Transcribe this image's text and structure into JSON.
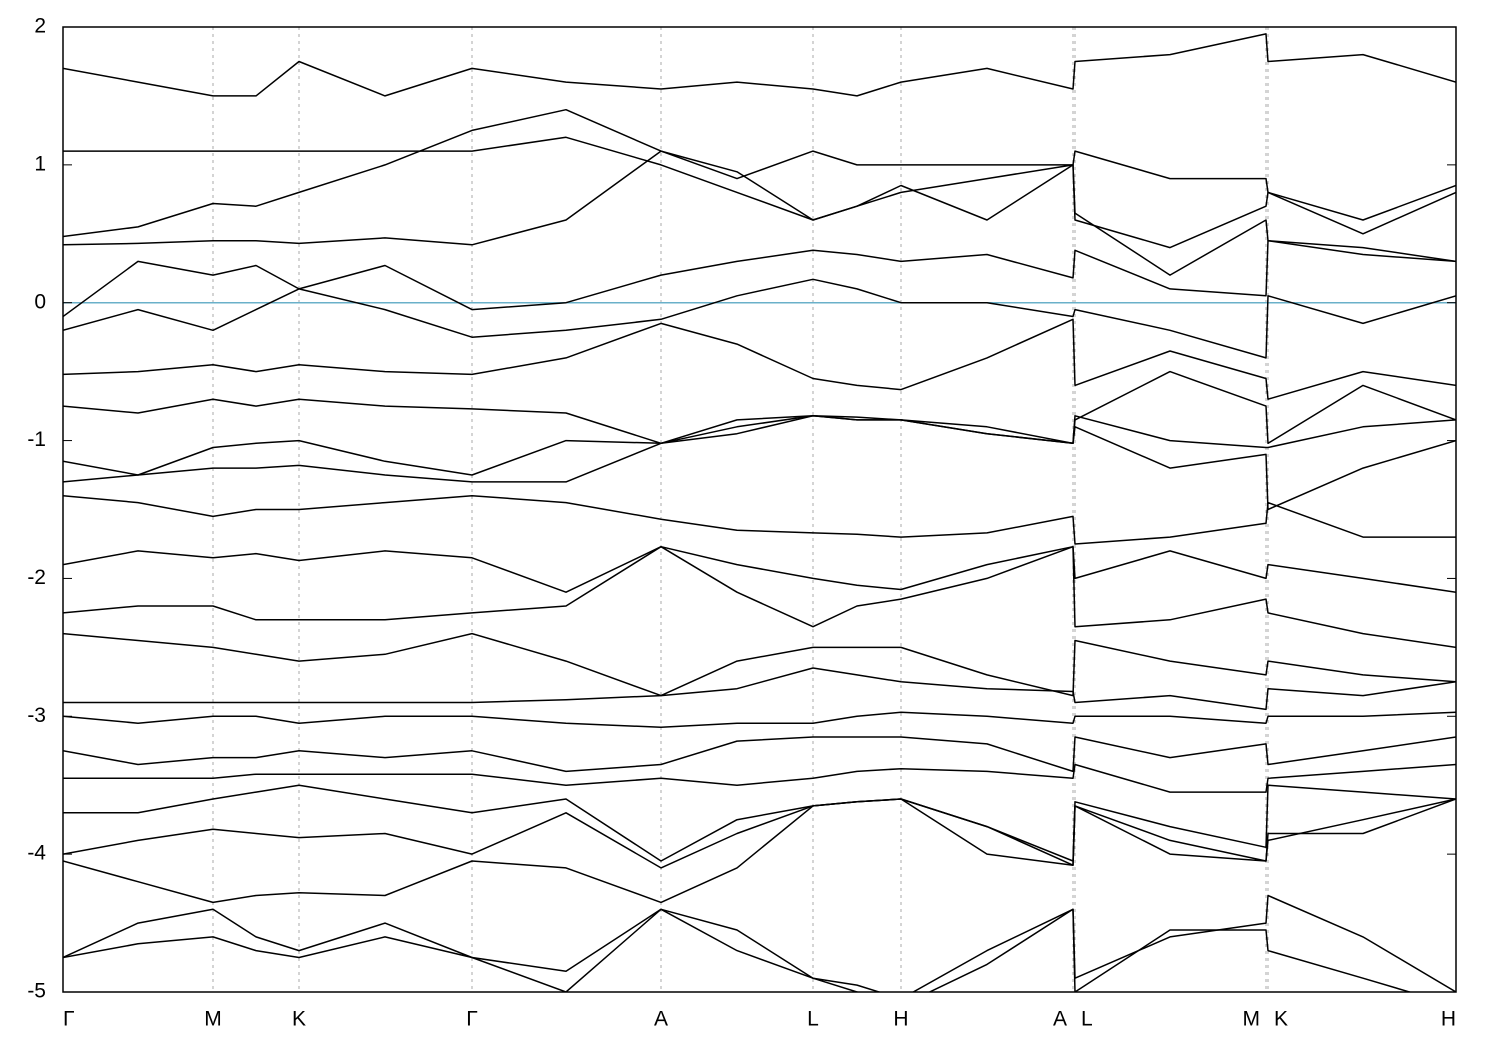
{
  "chart_data": {
    "type": "line",
    "x": [
      0,
      0.75,
      1.5,
      1.93,
      2.36,
      3.22,
      4.09,
      5.03,
      5.98,
      6.74,
      7.5,
      7.94,
      8.38,
      9.24,
      10.1,
      10.12,
      11.07,
      12.03,
      12.05,
      13.0,
      13.93
    ],
    "xlim": [
      0,
      13.93
    ],
    "xticks": [
      {
        "value": 0,
        "label": "Γ"
      },
      {
        "value": 1.5,
        "label": "M"
      },
      {
        "value": 2.36,
        "label": "K"
      },
      {
        "value": 4.09,
        "label": "Γ"
      },
      {
        "value": 5.98,
        "label": "A"
      },
      {
        "value": 7.5,
        "label": "L"
      },
      {
        "value": 8.38,
        "label": "H"
      },
      {
        "value": 10.1,
        "label": "A"
      },
      {
        "value": 10.12,
        "label": "L"
      },
      {
        "value": 12.03,
        "label": "M"
      },
      {
        "value": 12.05,
        "label": "K"
      },
      {
        "value": 13.93,
        "label": "H"
      }
    ],
    "ylim": [
      -5,
      2
    ],
    "yticks": [
      -5,
      -4,
      -3,
      -2,
      -1,
      0,
      1,
      2
    ],
    "grid": true,
    "color": "#000000",
    "hline": {
      "value": 0,
      "color": "#6ab0c9"
    },
    "series": [
      {
        "values": [
          1.7,
          1.6,
          1.5,
          1.5,
          1.75,
          1.5,
          1.7,
          1.6,
          1.55,
          1.6,
          1.55,
          1.5,
          1.6,
          1.7,
          1.55,
          1.75,
          1.8,
          1.95,
          1.75,
          1.8,
          1.6
        ]
      },
      {
        "values": [
          1.1,
          1.1,
          1.1,
          1.1,
          1.1,
          1.1,
          1.1,
          1.2,
          1.0,
          0.8,
          0.6,
          0.7,
          0.85,
          0.6,
          1.0,
          1.1,
          0.9,
          0.9,
          0.8,
          0.6,
          0.85
        ]
      },
      {
        "values": [
          0.48,
          0.55,
          0.72,
          0.7,
          0.8,
          1.0,
          1.25,
          1.4,
          1.1,
          0.9,
          1.1,
          1.0,
          1.0,
          1.0,
          1.0,
          0.6,
          0.4,
          0.7,
          0.8,
          0.5,
          0.8
        ]
      },
      {
        "values": [
          0.42,
          0.43,
          0.45,
          0.45,
          0.43,
          0.47,
          0.42,
          0.6,
          1.1,
          0.95,
          0.6,
          0.7,
          0.8,
          0.9,
          1.0,
          0.65,
          0.2,
          0.6,
          0.45,
          0.4,
          0.3
        ]
      },
      {
        "values": [
          -0.1,
          0.3,
          0.2,
          0.27,
          0.1,
          0.27,
          -0.05,
          0.0,
          0.2,
          0.3,
          0.38,
          0.35,
          0.3,
          0.35,
          0.18,
          0.38,
          0.1,
          0.05,
          0.45,
          0.35,
          0.3
        ]
      },
      {
        "values": [
          -0.2,
          -0.05,
          -0.2,
          -0.05,
          0.1,
          -0.05,
          -0.25,
          -0.2,
          -0.12,
          0.05,
          0.17,
          0.1,
          0.0,
          0.0,
          -0.1,
          -0.05,
          -0.2,
          -0.4,
          0.05,
          -0.15,
          0.05
        ]
      },
      {
        "values": [
          -0.52,
          -0.5,
          -0.45,
          -0.5,
          -0.45,
          -0.5,
          -0.52,
          -0.4,
          -0.15,
          -0.3,
          -0.55,
          -0.6,
          -0.63,
          -0.4,
          -0.12,
          -0.6,
          -0.35,
          -0.55,
          -0.7,
          -0.5,
          -0.6
        ]
      },
      {
        "values": [
          -0.75,
          -0.8,
          -0.7,
          -0.75,
          -0.7,
          -0.75,
          -0.77,
          -0.8,
          -1.02,
          -0.9,
          -0.82,
          -0.83,
          -0.85,
          -0.9,
          -1.02,
          -0.85,
          -0.5,
          -0.75,
          -1.02,
          -0.6,
          -0.85
        ]
      },
      {
        "values": [
          -1.15,
          -1.25,
          -1.05,
          -1.02,
          -1.0,
          -1.15,
          -1.25,
          -1.0,
          -1.02,
          -0.95,
          -0.82,
          -0.85,
          -0.85,
          -0.95,
          -1.02,
          -0.82,
          -1.0,
          -1.05,
          -1.05,
          -0.9,
          -0.85
        ]
      },
      {
        "values": [
          -1.3,
          -1.25,
          -1.2,
          -1.2,
          -1.18,
          -1.25,
          -1.3,
          -1.3,
          -1.02,
          -0.85,
          -0.82,
          -0.85,
          -0.85,
          -0.95,
          -1.02,
          -0.9,
          -1.2,
          -1.1,
          -1.5,
          -1.2,
          -1.0
        ]
      },
      {
        "values": [
          -1.4,
          -1.45,
          -1.55,
          -1.5,
          -1.5,
          -1.45,
          -1.4,
          -1.45,
          -1.57,
          -1.65,
          -1.67,
          -1.68,
          -1.7,
          -1.67,
          -1.55,
          -1.75,
          -1.7,
          -1.6,
          -1.45,
          -1.7,
          -1.7
        ]
      },
      {
        "values": [
          -1.9,
          -1.8,
          -1.85,
          -1.82,
          -1.87,
          -1.8,
          -1.85,
          -2.1,
          -1.77,
          -1.9,
          -2.0,
          -2.05,
          -2.08,
          -1.9,
          -1.77,
          -2.0,
          -1.8,
          -2.0,
          -1.9,
          -2.0,
          -2.1
        ]
      },
      {
        "values": [
          -2.25,
          -2.2,
          -2.2,
          -2.3,
          -2.3,
          -2.3,
          -2.25,
          -2.2,
          -1.77,
          -2.1,
          -2.35,
          -2.2,
          -2.15,
          -2.0,
          -1.77,
          -2.35,
          -2.3,
          -2.15,
          -2.25,
          -2.4,
          -2.5
        ]
      },
      {
        "values": [
          -2.4,
          -2.45,
          -2.5,
          -2.55,
          -2.6,
          -2.55,
          -2.4,
          -2.6,
          -2.85,
          -2.6,
          -2.5,
          -2.5,
          -2.5,
          -2.7,
          -2.85,
          -2.45,
          -2.6,
          -2.7,
          -2.6,
          -2.7,
          -2.75
        ]
      },
      {
        "values": [
          -2.9,
          -2.9,
          -2.9,
          -2.9,
          -2.9,
          -2.9,
          -2.9,
          -2.88,
          -2.85,
          -2.8,
          -2.65,
          -2.7,
          -2.75,
          -2.8,
          -2.82,
          -2.9,
          -2.85,
          -2.95,
          -2.8,
          -2.85,
          -2.75
        ]
      },
      {
        "values": [
          -3.0,
          -3.05,
          -3.0,
          -3.0,
          -3.05,
          -3.0,
          -3.0,
          -3.05,
          -3.08,
          -3.05,
          -3.05,
          -3.0,
          -2.97,
          -3.0,
          -3.05,
          -3.0,
          -3.0,
          -3.05,
          -3.0,
          -3.0,
          -2.97
        ]
      },
      {
        "values": [
          -3.25,
          -3.35,
          -3.3,
          -3.3,
          -3.25,
          -3.3,
          -3.25,
          -3.4,
          -3.35,
          -3.18,
          -3.15,
          -3.15,
          -3.15,
          -3.2,
          -3.4,
          -3.15,
          -3.3,
          -3.2,
          -3.35,
          -3.25,
          -3.15
        ]
      },
      {
        "values": [
          -3.45,
          -3.45,
          -3.45,
          -3.42,
          -3.42,
          -3.42,
          -3.42,
          -3.5,
          -3.45,
          -3.5,
          -3.45,
          -3.4,
          -3.38,
          -3.4,
          -3.45,
          -3.35,
          -3.55,
          -3.55,
          -3.45,
          -3.4,
          -3.35
        ]
      },
      {
        "values": [
          -3.7,
          -3.7,
          -3.6,
          -3.55,
          -3.5,
          -3.6,
          -3.7,
          -3.6,
          -4.05,
          -3.75,
          -3.65,
          -3.62,
          -3.6,
          -3.8,
          -4.05,
          -3.62,
          -3.8,
          -3.95,
          -3.5,
          -3.55,
          -3.6
        ]
      },
      {
        "values": [
          -4.0,
          -3.9,
          -3.82,
          -3.85,
          -3.88,
          -3.85,
          -4.0,
          -3.7,
          -4.1,
          -3.85,
          -3.65,
          -3.62,
          -3.6,
          -3.8,
          -4.08,
          -3.65,
          -3.9,
          -4.05,
          -3.85,
          -3.85,
          -3.6
        ]
      },
      {
        "values": [
          -4.05,
          -4.2,
          -4.35,
          -4.3,
          -4.28,
          -4.3,
          -4.05,
          -4.1,
          -4.35,
          -4.1,
          -3.65,
          -3.62,
          -3.6,
          -4.0,
          -4.08,
          -3.65,
          -4.0,
          -4.05,
          -3.9,
          -3.75,
          -3.6
        ]
      },
      {
        "values": [
          -4.75,
          -4.5,
          -4.4,
          -4.6,
          -4.7,
          -4.5,
          -4.75,
          -4.85,
          -4.4,
          -4.55,
          -4.9,
          -4.95,
          -5.05,
          -4.7,
          -4.4,
          -4.9,
          -4.6,
          -4.5,
          -4.3,
          -4.6,
          -5.0
        ]
      },
      {
        "values": [
          -4.75,
          -4.65,
          -4.6,
          -4.7,
          -4.75,
          -4.6,
          -4.75,
          -5.0,
          -4.4,
          -4.7,
          -4.9,
          -5.0,
          -5.1,
          -4.8,
          -4.4,
          -5.0,
          -4.55,
          -4.55,
          -4.7,
          -4.9,
          -5.1
        ]
      }
    ]
  }
}
